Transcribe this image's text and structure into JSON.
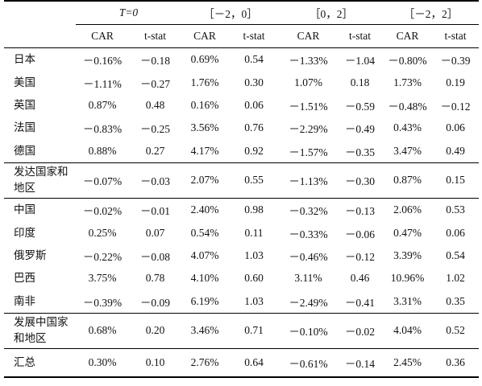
{
  "header": {
    "window_labels": [
      "T=0",
      "［－2，0］",
      "［0，2］",
      "［－2，2］"
    ],
    "sub_labels": [
      "CAR",
      "t-stat",
      "CAR",
      "t-stat",
      "CAR",
      "t-stat",
      "CAR",
      "t-stat"
    ]
  },
  "rows": [
    {
      "region": "日本",
      "cells": [
        "－0.16%",
        "－0.18",
        "0.69%",
        "0.54",
        "－1.33%",
        "－1.04",
        "－0.80%",
        "－0.39"
      ]
    },
    {
      "region": "美国",
      "cells": [
        "－1.11%",
        "－0.27",
        "1.76%",
        "0.30",
        "1.07%",
        "0.18",
        "1.73%",
        "0.19"
      ]
    },
    {
      "region": "英国",
      "cells": [
        "0.87%",
        "0.48",
        "0.16%",
        "0.06",
        "－1.51%",
        "－0.59",
        "－0.48%",
        "－0.12"
      ]
    },
    {
      "region": "法国",
      "cells": [
        "－0.83%",
        "－0.25",
        "3.56%",
        "0.76",
        "－2.29%",
        "－0.49",
        "0.43%",
        "0.06"
      ]
    },
    {
      "region": "德国",
      "cells": [
        "0.88%",
        "0.27",
        "4.17%",
        "0.92",
        "－1.57%",
        "－0.35",
        "3.47%",
        "0.49"
      ]
    },
    {
      "region": "发达国家和地区",
      "cells": [
        "－0.07%",
        "－0.03",
        "2.07%",
        "0.55",
        "－1.13%",
        "－0.30",
        "0.87%",
        "0.15"
      ]
    },
    {
      "region": "中国",
      "cells": [
        "－0.02%",
        "－0.01",
        "2.40%",
        "0.98",
        "－0.32%",
        "－0.13",
        "2.06%",
        "0.53"
      ]
    },
    {
      "region": "印度",
      "cells": [
        "0.25%",
        "0.07",
        "0.54%",
        "0.11",
        "－0.33%",
        "－0.06",
        "0.47%",
        "0.06"
      ]
    },
    {
      "region": "俄罗斯",
      "cells": [
        "－0.22%",
        "－0.08",
        "4.07%",
        "1.03",
        "－0.46%",
        "－0.12",
        "3.39%",
        "0.54"
      ]
    },
    {
      "region": "巴西",
      "cells": [
        "3.75%",
        "0.78",
        "4.10%",
        "0.60",
        "3.11%",
        "0.46",
        "10.96%",
        "1.02"
      ]
    },
    {
      "region": "南非",
      "cells": [
        "－0.39%",
        "－0.09",
        "6.19%",
        "1.03",
        "－2.49%",
        "－0.41",
        "3.31%",
        "0.35"
      ]
    },
    {
      "region": "发展中国家和地区",
      "cells": [
        "0.68%",
        "0.20",
        "3.46%",
        "0.71",
        "－0.10%",
        "－0.02",
        "4.04%",
        "0.52"
      ]
    },
    {
      "region": "汇总",
      "cells": [
        "0.30%",
        "0.10",
        "2.76%",
        "0.64",
        "－0.61%",
        "－0.14",
        "2.45%",
        "0.36"
      ]
    }
  ]
}
